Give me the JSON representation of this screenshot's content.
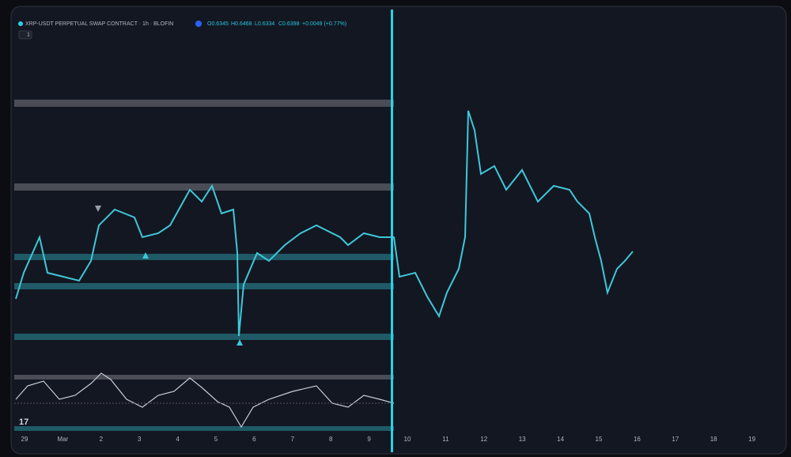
{
  "header": {
    "title": "XRP-USDT PERPETUAL SWAP CONTRACT · 1h · BLOFIN",
    "open": "O0.6345",
    "high": "H0.6468",
    "low": "L0.6334",
    "close": "C0.6398",
    "change": "+0.0049 (+0.77%)",
    "collapse": "1"
  },
  "time_axis": [
    "29",
    "Mar",
    "2",
    "3",
    "4",
    "5",
    "6",
    "7",
    "8",
    "9",
    "10",
    "11",
    "12",
    "13",
    "14",
    "15",
    "16",
    "17",
    "18",
    "19"
  ],
  "logo": "17"
}
